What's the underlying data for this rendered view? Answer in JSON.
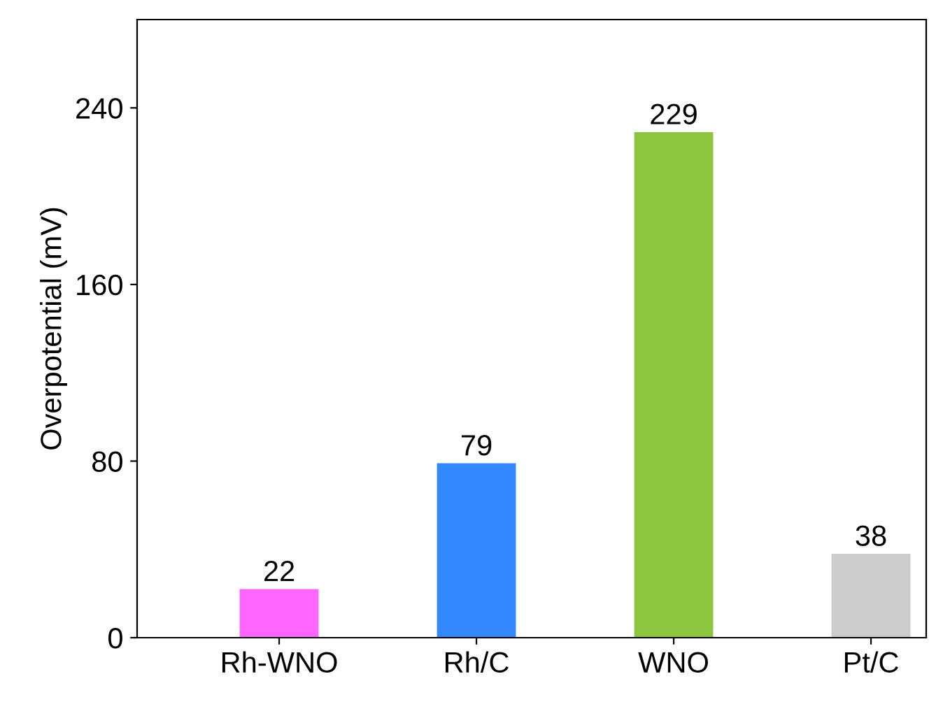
{
  "chart_data": {
    "type": "bar",
    "ylabel": "Overpotential (mV)",
    "categories": [
      "Rh-WNO",
      "Rh/C",
      "WNO",
      "Pt/C"
    ],
    "values": [
      22,
      79,
      229,
      38
    ],
    "colors": [
      "#ff66ff",
      "#3388ff",
      "#8cc63f",
      "#cccccc"
    ],
    "ylim": [
      0,
      280
    ],
    "yticks": [
      0,
      80,
      160,
      240
    ],
    "data_labels": true,
    "grid": false,
    "legend": false
  }
}
